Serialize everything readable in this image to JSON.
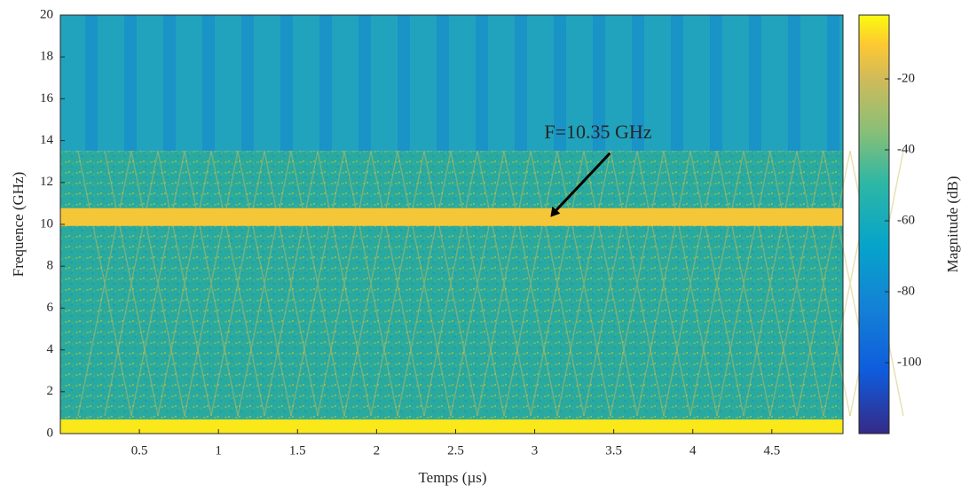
{
  "chart_data": {
    "type": "spectrogram",
    "xlabel": "Temps (µs)",
    "ylabel": "Frequence (GHz)",
    "xlim": [
      0,
      4.95
    ],
    "xticks": [
      0.5,
      1,
      1.5,
      2,
      2.5,
      3,
      3.5,
      4,
      4.5
    ],
    "ylim": [
      0,
      20
    ],
    "yticks": [
      0,
      2,
      4,
      6,
      8,
      10,
      12,
      14,
      16,
      18,
      20
    ],
    "colorbar": {
      "label": "Magnitude (dB)",
      "clim": [
        -120,
        -2
      ],
      "ticks": [
        -20,
        -40,
        -60,
        -80,
        -100
      ]
    },
    "bands": [
      {
        "y": 10.35,
        "value": -12
      },
      {
        "y": 0.25,
        "value": -5
      }
    ],
    "annotation": {
      "text": "F=10.35 GHz",
      "x": 3.1,
      "y": 10.35
    }
  }
}
